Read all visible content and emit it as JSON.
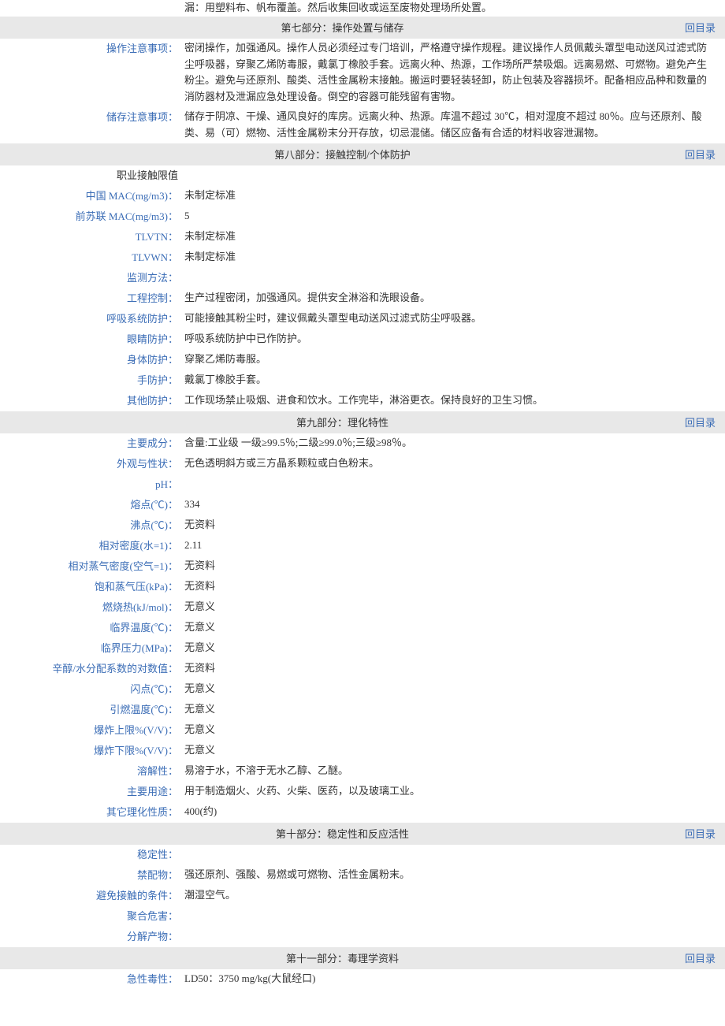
{
  "backLink": "回目录",
  "topContinuation": "漏：用塑料布、帆布覆盖。然后收集回收或运至废物处理场所处置。",
  "section7": {
    "title": "第七部分：操作处置与储存",
    "rows": [
      {
        "label": "操作注意事项：",
        "value": "密闭操作，加强通风。操作人员必须经过专门培训，严格遵守操作规程。建议操作人员佩戴头罩型电动送风过滤式防尘呼吸器，穿聚乙烯防毒服，戴氯丁橡胶手套。远离火种、热源，工作场所严禁吸烟。远离易燃、可燃物。避免产生粉尘。避免与还原剂、酸类、活性金属粉末接触。搬运时要轻装轻卸，防止包装及容器损坏。配备相应品种和数量的消防器材及泄漏应急处理设备。倒空的容器可能残留有害物。"
      },
      {
        "label": "储存注意事项：",
        "value": "储存于阴凉、干燥、通风良好的库房。远离火种、热源。库温不超过 30℃，相对湿度不超过 80％。应与还原剂、酸类、易（可）燃物、活性金属粉末分开存放，切忌混储。储区应备有合适的材料收容泄漏物。"
      }
    ]
  },
  "section8": {
    "title": "第八部分：接触控制/个体防护",
    "rows": [
      {
        "label": "职业接触限值",
        "value": "",
        "noncolor": true
      },
      {
        "label": "中国 MAC(mg/m3)：",
        "value": "未制定标准"
      },
      {
        "label": "前苏联 MAC(mg/m3)：",
        "value": "5"
      },
      {
        "label": "TLVTN：",
        "value": "未制定标准"
      },
      {
        "label": "TLVWN：",
        "value": "未制定标准"
      },
      {
        "label": "监测方法：",
        "value": ""
      },
      {
        "label": "工程控制：",
        "value": "生产过程密闭，加强通风。提供安全淋浴和洗眼设备。"
      },
      {
        "label": "呼吸系统防护：",
        "value": "可能接触其粉尘时，建议佩戴头罩型电动送风过滤式防尘呼吸器。"
      },
      {
        "label": "眼睛防护：",
        "value": "呼吸系统防护中已作防护。"
      },
      {
        "label": "身体防护：",
        "value": "穿聚乙烯防毒服。"
      },
      {
        "label": "手防护：",
        "value": "戴氯丁橡胶手套。"
      },
      {
        "label": "其他防护：",
        "value": "工作现场禁止吸烟、进食和饮水。工作完毕，淋浴更衣。保持良好的卫生习惯。"
      }
    ]
  },
  "section9": {
    "title": "第九部分：理化特性",
    "rows": [
      {
        "label": "主要成分：",
        "value": "含量:工业级  一级≥99.5％;二级≥99.0％;三级≥98％。"
      },
      {
        "label": "外观与性状：",
        "value": "无色透明斜方或三方晶系颗粒或白色粉末。"
      },
      {
        "label": "pH：",
        "value": ""
      },
      {
        "label": "熔点(℃)：",
        "value": "334"
      },
      {
        "label": "沸点(℃)：",
        "value": "无资料"
      },
      {
        "label": "相对密度(水=1)：",
        "value": "2.11"
      },
      {
        "label": "相对蒸气密度(空气=1)：",
        "value": "无资料"
      },
      {
        "label": "饱和蒸气压(kPa)：",
        "value": "无资料"
      },
      {
        "label": "燃烧热(kJ/mol)：",
        "value": "无意义"
      },
      {
        "label": "临界温度(℃)：",
        "value": "无意义"
      },
      {
        "label": "临界压力(MPa)：",
        "value": "无意义"
      },
      {
        "label": "辛醇/水分配系数的对数值：",
        "value": "无资料"
      },
      {
        "label": "闪点(℃)：",
        "value": "无意义"
      },
      {
        "label": "引燃温度(℃)：",
        "value": "无意义"
      },
      {
        "label": "爆炸上限%(V/V)：",
        "value": "无意义"
      },
      {
        "label": "爆炸下限%(V/V)：",
        "value": "无意义"
      },
      {
        "label": "溶解性：",
        "value": "易溶于水，不溶于无水乙醇、乙醚。"
      },
      {
        "label": "主要用途：",
        "value": "用于制造烟火、火药、火柴、医药，以及玻璃工业。"
      },
      {
        "label": "其它理化性质：",
        "value": "400(约)"
      }
    ]
  },
  "section10": {
    "title": "第十部分：稳定性和反应活性",
    "rows": [
      {
        "label": "稳定性：",
        "value": ""
      },
      {
        "label": "禁配物：",
        "value": "强还原剂、强酸、易燃或可燃物、活性金属粉末。"
      },
      {
        "label": "避免接触的条件：",
        "value": "潮湿空气。"
      },
      {
        "label": "聚合危害：",
        "value": ""
      },
      {
        "label": "分解产物：",
        "value": ""
      }
    ]
  },
  "section11": {
    "title": "第十一部分：毒理学资料",
    "rows": [
      {
        "label": "急性毒性：",
        "value": "LD50：3750 mg/kg(大鼠经口)"
      }
    ]
  }
}
